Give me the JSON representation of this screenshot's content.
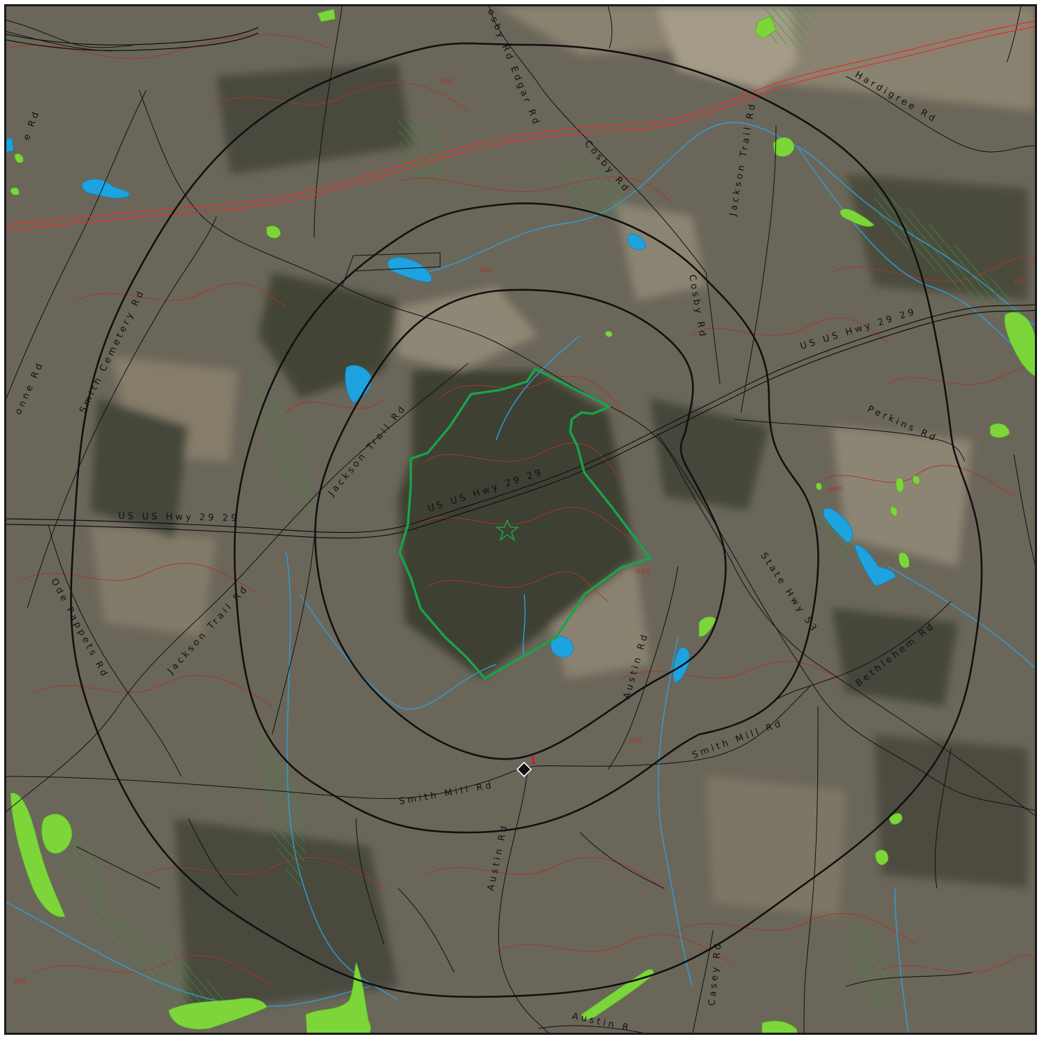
{
  "colors": {
    "imagery_base": "#6b665a",
    "forest": "#3d3f33",
    "field": "#8a8270",
    "contour": "#a8362a",
    "stream": "#2f9fd6",
    "water": "#1ea3e0",
    "wetland": "#7cd63a",
    "wetland_hatch": "#2f9a3a",
    "road": "#111111",
    "railroad": "#e03030",
    "buffer_ring": "#111111",
    "site_boundary": "#1aa34a",
    "sample_marker": "#111111",
    "sample_label": "#d11a1a"
  },
  "road_labels": [
    {
      "id": "cosby-rd-edgar-rd-top",
      "text": "osby Rd Edgar Rd"
    },
    {
      "id": "hardigree-rd",
      "text": "Hardigree Rd"
    },
    {
      "id": "cosby-rd-north",
      "text": "Cosby Rd"
    },
    {
      "id": "jackson-trail-rd-ne",
      "text": "Jackson Trail Rd"
    },
    {
      "id": "e-rd-west",
      "text": "e Rd"
    },
    {
      "id": "cosby-rd-mid",
      "text": "Cosby Rd"
    },
    {
      "id": "smith-cemetery-rd",
      "text": "Smith Cemetery Rd"
    },
    {
      "id": "us-hwy-29-east",
      "text": "US US Hwy 29 29"
    },
    {
      "id": "onne-rd",
      "text": "onne Rd"
    },
    {
      "id": "jackson-trail-rd-center",
      "text": "Jackson Trail Rd"
    },
    {
      "id": "perkins-rd",
      "text": "Perkins Rd"
    },
    {
      "id": "us-hwy-29-center",
      "text": "US US Hwy 29 29"
    },
    {
      "id": "us-hwy-29-west",
      "text": "US US Hwy 29 29"
    },
    {
      "id": "jackson-trail-rd-south",
      "text": "Jackson Trail Rd"
    },
    {
      "id": "ode-pappets-rd",
      "text": "Ode Pappets Rd"
    },
    {
      "id": "state-hwy-53",
      "text": "State Hwy 53"
    },
    {
      "id": "austin-rd-north",
      "text": "Austin Rd"
    },
    {
      "id": "bethlehem-rd",
      "text": "Bethlehem Rd"
    },
    {
      "id": "smith-mill-rd-east",
      "text": "Smith Mill Rd"
    },
    {
      "id": "smith-mill-rd-center",
      "text": "Smith Mill Rd"
    },
    {
      "id": "austin-rd-south",
      "text": "Austin Rd"
    },
    {
      "id": "casey-rd",
      "text": "Casey Rd"
    },
    {
      "id": "austin-r-bottom",
      "text": "Austin R"
    }
  ],
  "sample_point": {
    "label": "1"
  },
  "contour_labels": [
    "880",
    "840",
    "880",
    "880",
    "880",
    "880",
    "800"
  ]
}
